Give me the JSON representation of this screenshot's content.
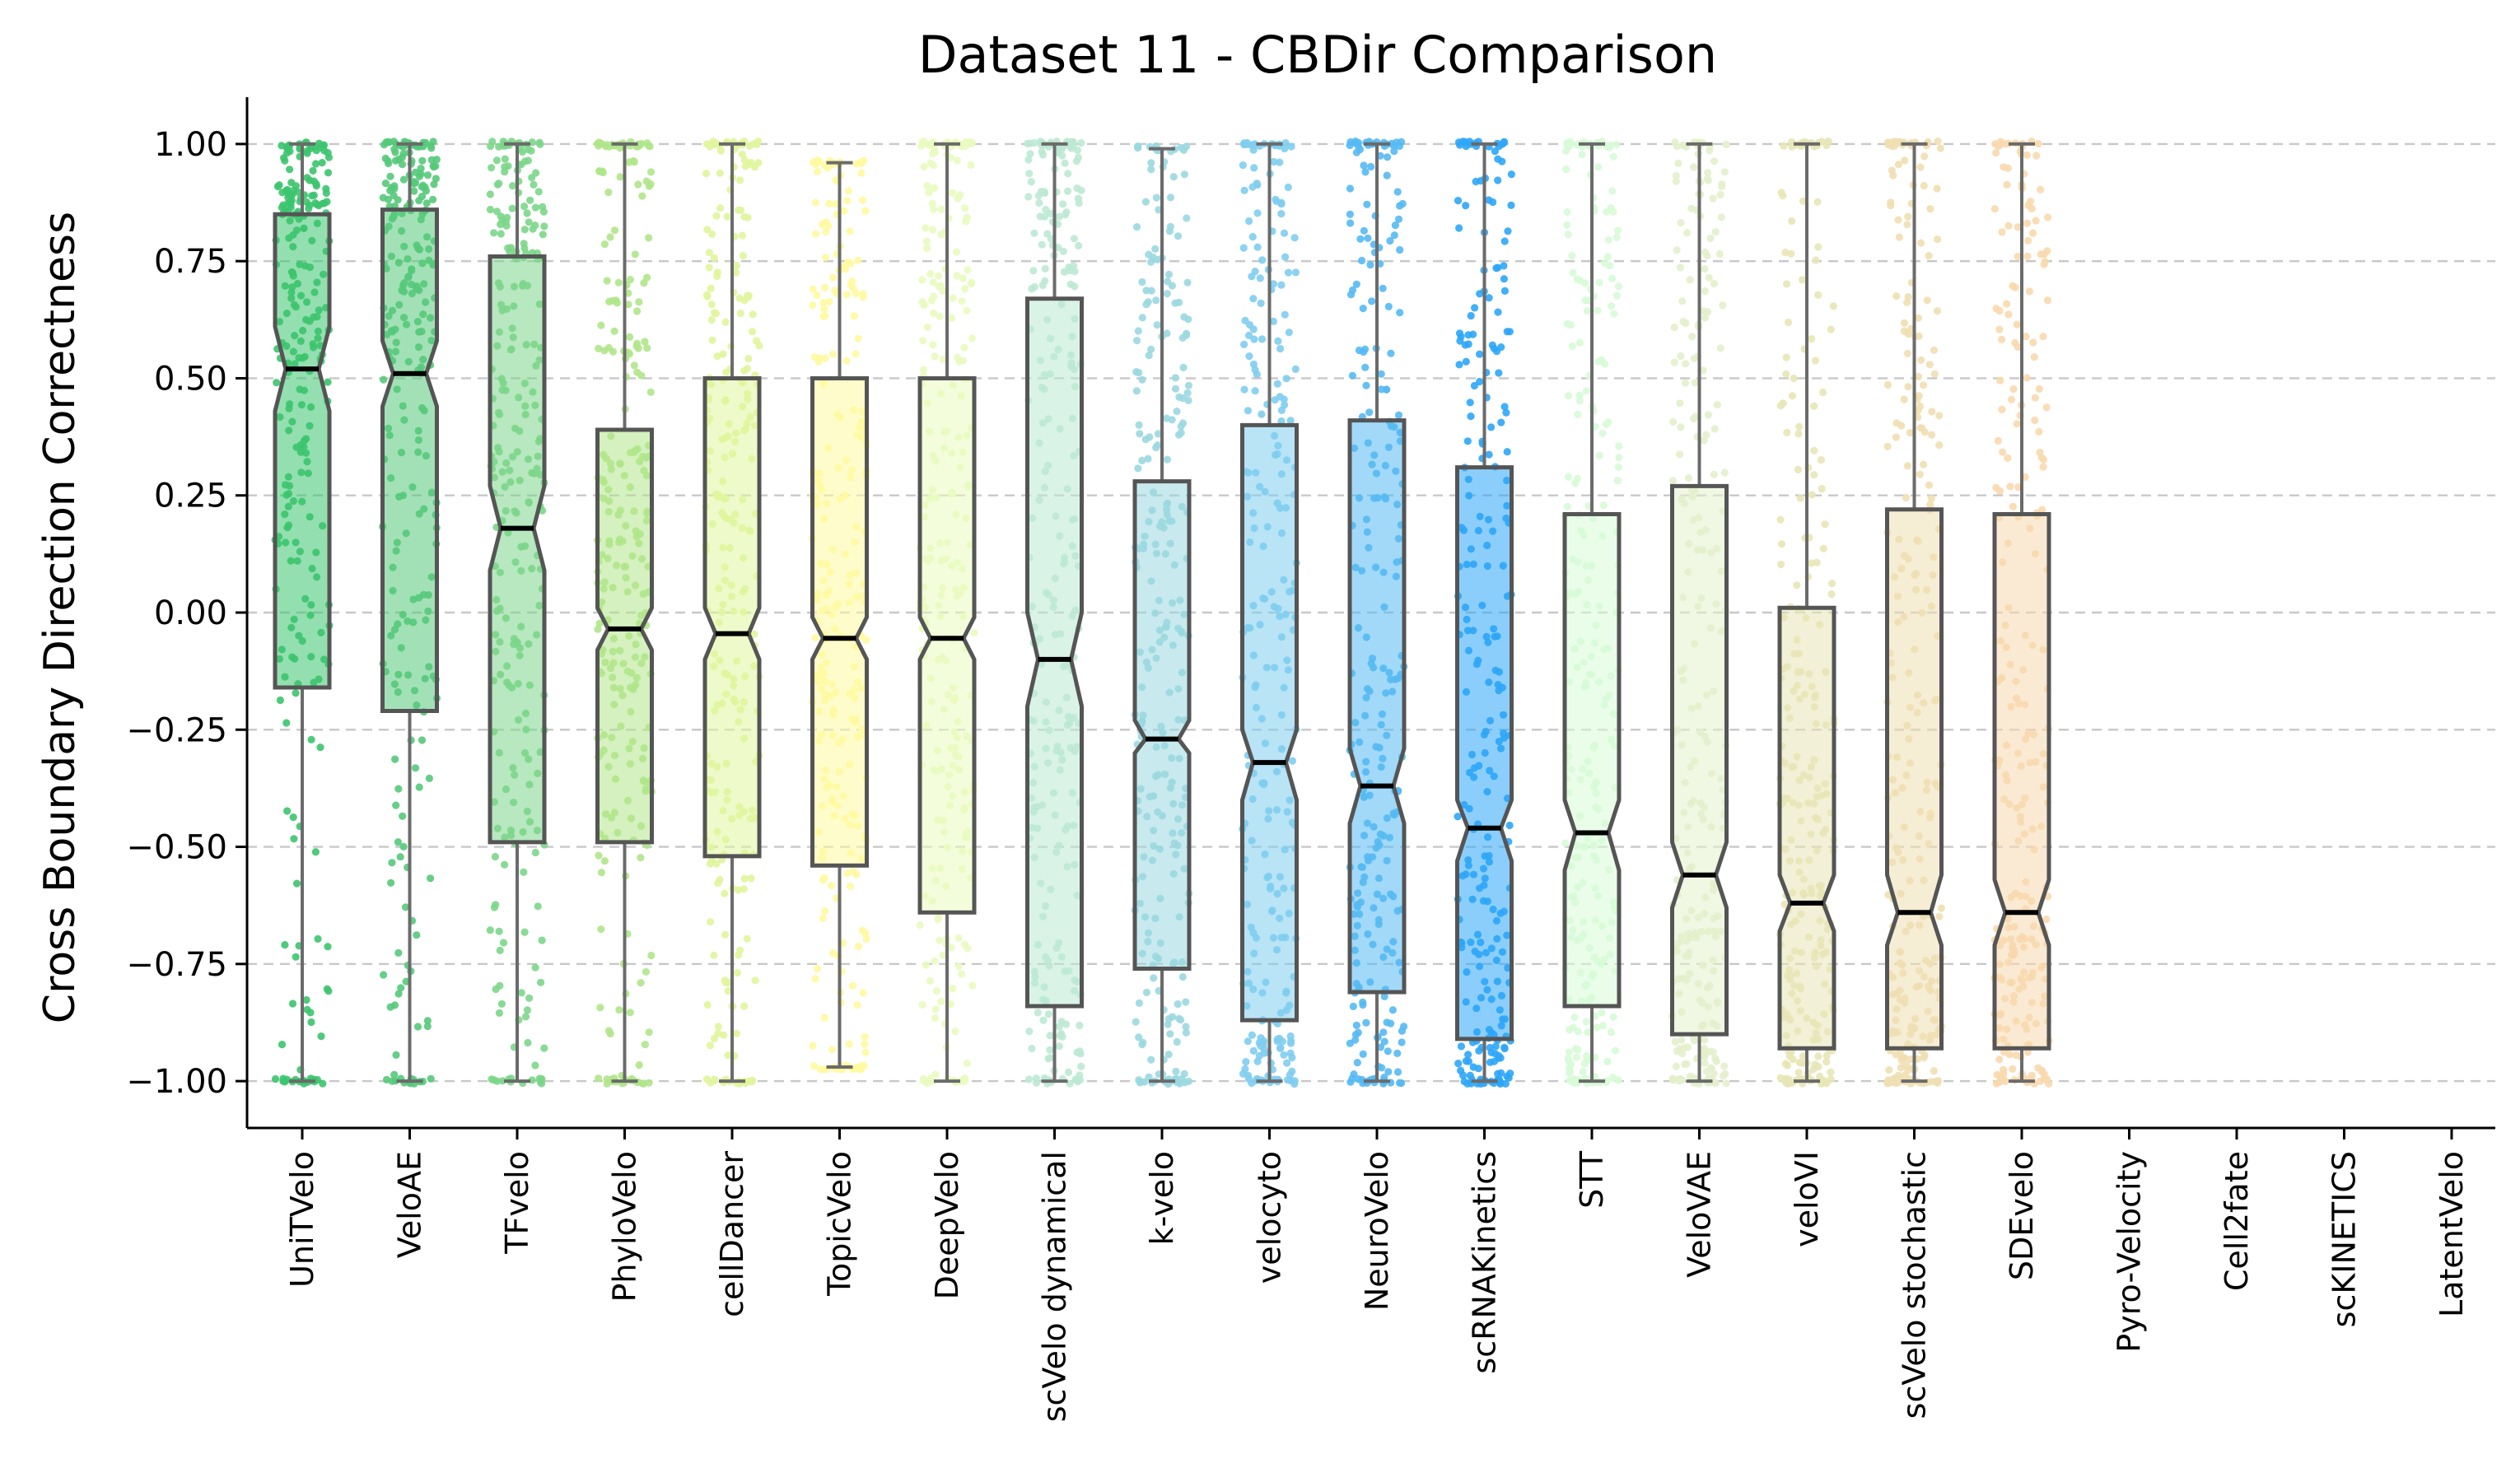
{
  "chart_data": {
    "type": "boxplot-strip",
    "title": "Dataset 11 - CBDir Comparison",
    "xlabel": "",
    "ylabel": "Cross Boundary Direction Correctness",
    "ylim": [
      -1.1,
      1.1
    ],
    "yticks": [
      "1.00",
      "0.75",
      "0.50",
      "0.25",
      "0.00",
      "−0.25",
      "−0.50",
      "−0.75",
      "−1.00"
    ],
    "ytick_values": [
      1.0,
      0.75,
      0.5,
      0.25,
      0.0,
      -0.25,
      -0.5,
      -0.75,
      -1.0
    ],
    "grid": "y-dashed",
    "categories": [
      "UniTVelo",
      "VeloAE",
      "TFvelo",
      "PhyloVelo",
      "cellDancer",
      "TopicVelo",
      "DeepVelo",
      "scVelo dynamical",
      "k-velo",
      "velocyto",
      "NeuroVelo",
      "scRNAKinetics",
      "STT",
      "VeloVAE",
      "veloVI",
      "scVelo stochastic",
      "SDEvelo",
      "Pyro-Velocity",
      "Cell2fate",
      "scKINETICS",
      "LatentVelo"
    ],
    "series": [
      {
        "name": "UniTVelo",
        "color": "#3cc46e",
        "whislo": -1.0,
        "q1": -0.16,
        "median": 0.52,
        "q3": 0.85,
        "whishi": 1.0,
        "notch": [
          0.43,
          0.61
        ]
      },
      {
        "name": "VeloAE",
        "color": "#55c97a",
        "whislo": -1.0,
        "q1": -0.21,
        "median": 0.51,
        "q3": 0.86,
        "whishi": 1.0,
        "notch": [
          0.44,
          0.58
        ]
      },
      {
        "name": "TFvelo",
        "color": "#7cd68a",
        "whislo": -1.0,
        "q1": -0.49,
        "median": 0.18,
        "q3": 0.76,
        "whishi": 1.0,
        "notch": [
          0.09,
          0.27
        ]
      },
      {
        "name": "PhyloVelo",
        "color": "#b0e68a",
        "whislo": -1.0,
        "q1": -0.49,
        "median": -0.035,
        "q3": 0.39,
        "whishi": 1.0,
        "notch": [
          -0.08,
          0.01
        ]
      },
      {
        "name": "cellDancer",
        "color": "#e0f59c",
        "whislo": -1.0,
        "q1": -0.52,
        "median": -0.045,
        "q3": 0.5,
        "whishi": 1.0,
        "notch": [
          -0.1,
          0.01
        ]
      },
      {
        "name": "TopicVelo",
        "color": "#fffaa0",
        "whislo": -0.97,
        "q1": -0.54,
        "median": -0.055,
        "q3": 0.5,
        "whishi": 0.96,
        "notch": [
          -0.1,
          -0.01
        ]
      },
      {
        "name": "DeepVelo",
        "color": "#e9fbc0",
        "whislo": -1.0,
        "q1": -0.64,
        "median": -0.055,
        "q3": 0.5,
        "whishi": 1.0,
        "notch": [
          -0.1,
          -0.01
        ]
      },
      {
        "name": "scVelo dynamical",
        "color": "#bce9d4",
        "whislo": -1.0,
        "q1": -0.84,
        "median": -0.1,
        "q3": 0.67,
        "whishi": 1.0,
        "notch": [
          -0.2,
          0.0
        ]
      },
      {
        "name": "k-velo",
        "color": "#9bd8e0",
        "whislo": -1.0,
        "q1": -0.76,
        "median": -0.27,
        "q3": 0.28,
        "whishi": 0.99,
        "notch": [
          -0.3,
          -0.23
        ]
      },
      {
        "name": "velocyto",
        "color": "#7fcdef",
        "whislo": -1.0,
        "q1": -0.87,
        "median": -0.32,
        "q3": 0.4,
        "whishi": 1.0,
        "notch": [
          -0.4,
          -0.25
        ]
      },
      {
        "name": "NeuroVelo",
        "color": "#55b9f3",
        "whislo": -1.0,
        "q1": -0.81,
        "median": -0.37,
        "q3": 0.41,
        "whishi": 1.0,
        "notch": [
          -0.45,
          -0.29
        ]
      },
      {
        "name": "scRNAKinetics",
        "color": "#2ea6f8",
        "whislo": -1.0,
        "q1": -0.91,
        "median": -0.46,
        "q3": 0.31,
        "whishi": 1.0,
        "notch": [
          -0.53,
          -0.4
        ]
      },
      {
        "name": "STT",
        "color": "#d7fbd7",
        "whislo": -1.0,
        "q1": -0.84,
        "median": -0.47,
        "q3": 0.21,
        "whishi": 1.0,
        "notch": [
          -0.55,
          -0.4
        ]
      },
      {
        "name": "VeloVAE",
        "color": "#e3f0cc",
        "whislo": -1.0,
        "q1": -0.9,
        "median": -0.56,
        "q3": 0.27,
        "whishi": 1.0,
        "notch": [
          -0.63,
          -0.49
        ]
      },
      {
        "name": "veloVI",
        "color": "#e8e6b6",
        "whislo": -1.0,
        "q1": -0.93,
        "median": -0.62,
        "q3": 0.01,
        "whishi": 1.0,
        "notch": [
          -0.68,
          -0.56
        ]
      },
      {
        "name": "scVelo stochastic",
        "color": "#efdfb2",
        "whislo": -1.0,
        "q1": -0.93,
        "median": -0.64,
        "q3": 0.22,
        "whishi": 1.0,
        "notch": [
          -0.71,
          -0.56
        ]
      },
      {
        "name": "SDEvelo",
        "color": "#f8d9ae",
        "whislo": -1.0,
        "q1": -0.93,
        "median": -0.64,
        "q3": 0.21,
        "whishi": 1.0,
        "notch": [
          -0.71,
          -0.57
        ]
      },
      {
        "name": "Pyro-Velocity",
        "color": "#ffffff",
        "empty": true
      },
      {
        "name": "Cell2fate",
        "color": "#ffffff",
        "empty": true
      },
      {
        "name": "scKINETICS",
        "color": "#ffffff",
        "empty": true
      },
      {
        "name": "LatentVelo",
        "color": "#ffffff",
        "empty": true
      }
    ]
  }
}
